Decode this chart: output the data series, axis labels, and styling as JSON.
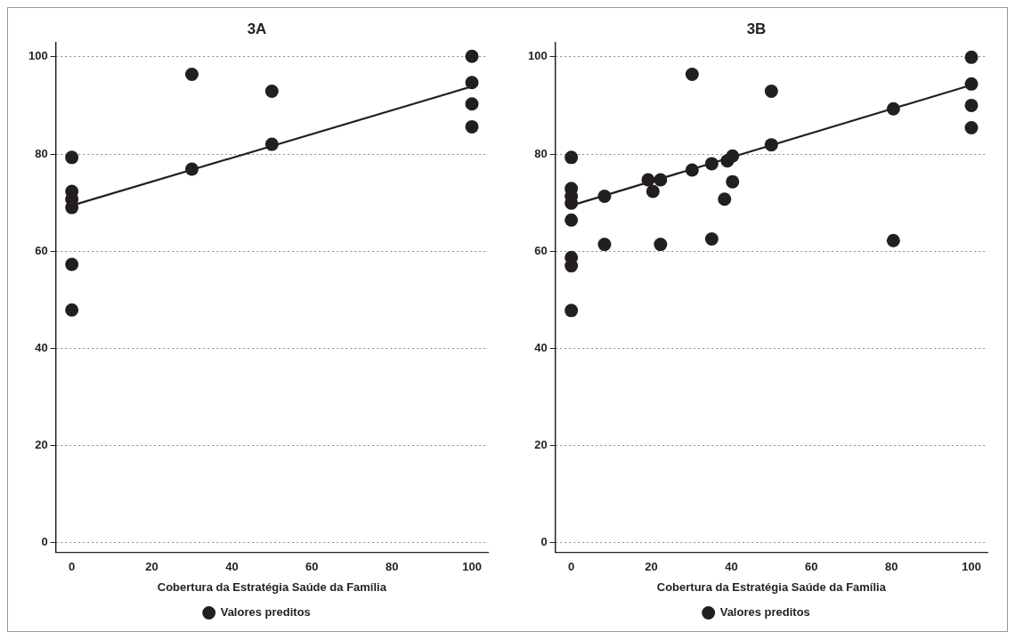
{
  "chart_data": [
    {
      "type": "scatter",
      "title": "3A",
      "xlabel": "Cobertura da Estratégia Saúde da Família",
      "xlim": [
        -4,
        104
      ],
      "ylim": [
        -2,
        103
      ],
      "xticks": [
        0,
        20,
        40,
        60,
        80,
        100
      ],
      "yticks": [
        0,
        20,
        40,
        60,
        80,
        100
      ],
      "grid": "y",
      "legend": "bottom",
      "series": [
        {
          "type": "scatter",
          "marker": "circle",
          "color": "#231f20",
          "x": [
            0,
            0,
            0,
            0,
            0,
            0,
            30,
            30,
            50,
            50,
            100,
            100,
            100,
            100
          ],
          "values": [
            79.3,
            72.3,
            70.7,
            69.0,
            57.3,
            47.9,
            96.4,
            76.9,
            92.9,
            82.0,
            100.1,
            94.7,
            90.3,
            85.6
          ]
        },
        {
          "type": "line",
          "name": "Valores preditos",
          "color": "#231f20",
          "x": [
            0,
            100
          ],
          "values": [
            69.4,
            93.9
          ]
        }
      ]
    },
    {
      "type": "scatter",
      "title": "3B",
      "xlabel": "Cobertura da Estratégia Saúde da Família",
      "xlim": [
        -4,
        104
      ],
      "ylim": [
        -2,
        103
      ],
      "xticks": [
        0,
        20,
        40,
        60,
        80,
        100
      ],
      "yticks": [
        0,
        20,
        40,
        60,
        80,
        100
      ],
      "grid": "y",
      "legend": "bottom",
      "series": [
        {
          "type": "scatter",
          "marker": "circle",
          "color": "#231f20",
          "x": [
            0,
            0,
            0,
            0,
            0,
            0,
            0,
            0,
            8.3,
            8.3,
            19.2,
            20.4,
            22.3,
            22.3,
            30.2,
            30.2,
            35.1,
            35.1,
            38.3,
            39.0,
            40.3,
            40.3,
            50.0,
            50.0,
            80.5,
            80.5,
            100,
            100,
            100,
            100
          ],
          "values": [
            79.3,
            72.9,
            71.3,
            69.9,
            66.4,
            58.7,
            57.0,
            47.8,
            71.3,
            61.4,
            74.7,
            72.3,
            74.7,
            61.4,
            96.4,
            76.7,
            78.0,
            62.5,
            70.7,
            78.6,
            79.6,
            74.3,
            92.9,
            81.9,
            89.3,
            62.2,
            99.9,
            94.4,
            90.0,
            85.4
          ]
        },
        {
          "type": "line",
          "name": "Valores preditos",
          "color": "#231f20",
          "x": [
            0,
            100
          ],
          "values": [
            69.4,
            94.2
          ]
        }
      ]
    }
  ]
}
